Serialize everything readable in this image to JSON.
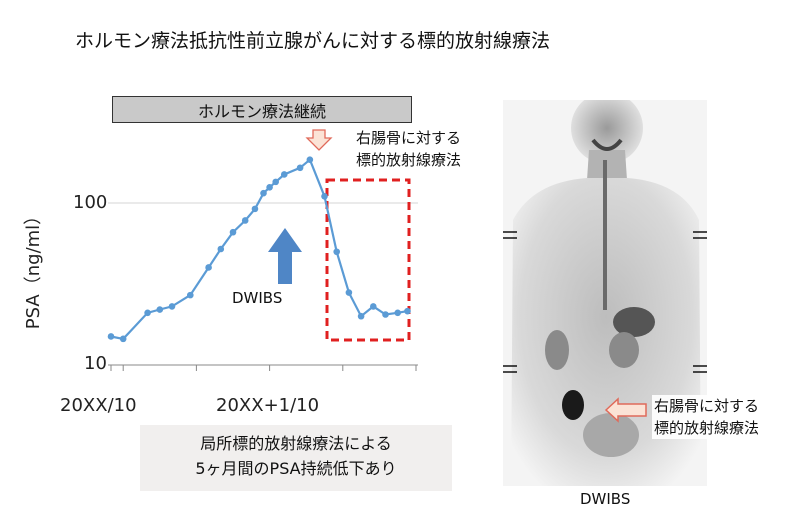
{
  "title": "ホルモン療法抵抗性前立腺がんに対する標的放射線療法",
  "hormone_bar_label": "ホルモン療法継続",
  "annotation_top": [
    "右腸骨に対する",
    "標的放射線療法"
  ],
  "annotation_dwibs": "DWIBS",
  "summary": [
    "局所標的放射線療法による",
    "5ヶ月間のPSA持続低下あり"
  ],
  "scan": {
    "label": "DWIBS",
    "annotation": [
      "右腸骨に対する",
      "標的放射線療法"
    ]
  },
  "colors": {
    "series": "#5b9bd5",
    "arrow_blue": "#4f86c6",
    "highlight_red": "#e02020",
    "arrow_pink_fill": "#fbe3d6",
    "arrow_pink_stroke": "#e06a5a"
  },
  "chart_data": {
    "type": "line",
    "ylabel": "PSA（ng/ml）",
    "yscale": "log",
    "ylim": [
      10,
      200
    ],
    "yticks": [
      {
        "value": 10,
        "label": "10"
      },
      {
        "value": 100,
        "label": "100"
      }
    ],
    "xticks": [
      {
        "value": 0,
        "label": "20XX/10"
      },
      {
        "value": 12,
        "label": "20XX+1/10"
      }
    ],
    "xlim": [
      -1,
      24
    ],
    "series": [
      {
        "x": [
          -1,
          0,
          2,
          3,
          4,
          5.5,
          7,
          8,
          9,
          10,
          10.8,
          11.5,
          12,
          12.5,
          13.2,
          14.5,
          15.3,
          16.5,
          17.5,
          18.5,
          19.5,
          20.5,
          21.5,
          22.5,
          23.3
        ],
        "y": [
          15,
          14.5,
          21,
          22,
          23,
          27,
          40,
          52,
          66,
          78,
          92,
          115,
          125,
          135,
          150,
          165,
          185,
          110,
          50,
          28,
          20,
          23,
          20.5,
          21,
          21.5
        ]
      }
    ]
  }
}
